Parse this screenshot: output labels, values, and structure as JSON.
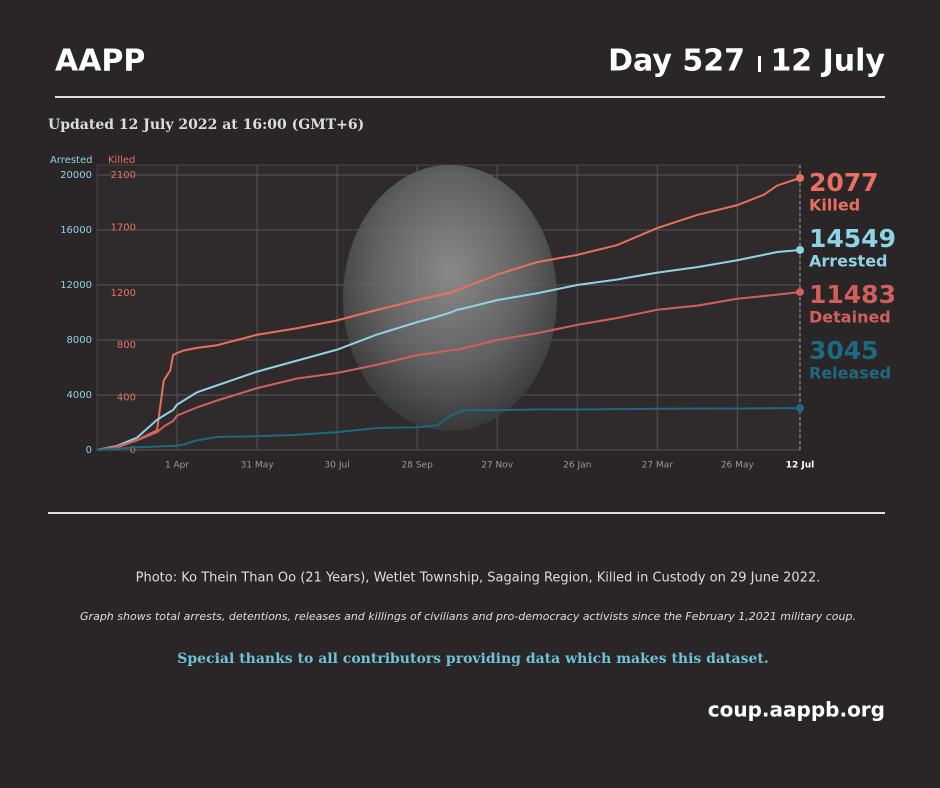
{
  "header": {
    "org": "AAPP",
    "day": "Day 527",
    "date": "12 July",
    "updated": "Updated 12 July 2022 at 16:00 (GMT+6)"
  },
  "chart_data": {
    "type": "line",
    "ylabel": "Arrested",
    "y2label": "Killed",
    "x": [
      0,
      15,
      30,
      45,
      50,
      55,
      57,
      60,
      65,
      75,
      90,
      120,
      150,
      180,
      210,
      240,
      255,
      265,
      270,
      275,
      300,
      330,
      360,
      390,
      420,
      450,
      480,
      500,
      510,
      527
    ],
    "xlim": [
      0,
      527
    ],
    "xticks": [
      {
        "value": 60,
        "label": "1 Apr"
      },
      {
        "value": 120,
        "label": "31 May"
      },
      {
        "value": 180,
        "label": "30 Jul"
      },
      {
        "value": 240,
        "label": "28 Sep"
      },
      {
        "value": 300,
        "label": "27 Nov"
      },
      {
        "value": 360,
        "label": "26 Jan"
      },
      {
        "value": 420,
        "label": "27 Mar"
      },
      {
        "value": 480,
        "label": "26 May"
      },
      {
        "value": 527,
        "label": "12 Jul"
      }
    ],
    "ylim": [
      0,
      20000
    ],
    "yticks": [
      0,
      4000,
      8000,
      12000,
      16000,
      20000
    ],
    "y2lim": [
      0,
      2100
    ],
    "y2ticks": [
      0,
      400,
      800,
      1200,
      1700,
      2100
    ],
    "grid": true,
    "series": [
      {
        "name": "Killed",
        "color": "#e8705f",
        "axis": "y2",
        "values": [
          0,
          20,
          75,
          150,
          530,
          610,
          725,
          740,
          760,
          780,
          800,
          880,
          930,
          990,
          1070,
          1145,
          1180,
          1200,
          1220,
          1240,
          1340,
          1435,
          1490,
          1565,
          1695,
          1795,
          1870,
          1950,
          2020,
          2077
        ]
      },
      {
        "name": "Arrested",
        "color": "#8fd3e6",
        "values": [
          0,
          300,
          900,
          2200,
          2500,
          2800,
          2900,
          3300,
          3600,
          4200,
          4700,
          5700,
          6500,
          7300,
          8400,
          9300,
          9700,
          10000,
          10200,
          10300,
          10900,
          11400,
          12000,
          12400,
          12900,
          13300,
          13800,
          14200,
          14400,
          14549
        ]
      },
      {
        "name": "Detained",
        "color": "#d2605a",
        "values": [
          0,
          250,
          700,
          1300,
          1700,
          2000,
          2100,
          2500,
          2700,
          3100,
          3600,
          4500,
          5200,
          5600,
          6200,
          6900,
          7100,
          7250,
          7300,
          7400,
          8000,
          8500,
          9100,
          9600,
          10200,
          10500,
          11000,
          11200,
          11300,
          11483
        ]
      },
      {
        "name": "Released",
        "color": "#1c6a80",
        "values": [
          0,
          100,
          200,
          250,
          280,
          290,
          300,
          300,
          400,
          700,
          950,
          1000,
          1100,
          1300,
          1600,
          1650,
          1800,
          2500,
          2700,
          2900,
          2900,
          2950,
          2950,
          2970,
          3000,
          3010,
          3020,
          3030,
          3040,
          3045
        ]
      }
    ]
  },
  "footer": {
    "photo": "Photo:  Ko Thein Than Oo (21 Years), Wetlet Township, Sagaing Region, Killed in Custody on 29 June 2022.",
    "note": "Graph shows total arrests, detentions, releases and killings of civilians and pro-democracy activists since the February 1,2021 military coup.",
    "thanks": "Special thanks to all contributors providing data which makes this dataset.",
    "url": "coup.aappb.org"
  }
}
